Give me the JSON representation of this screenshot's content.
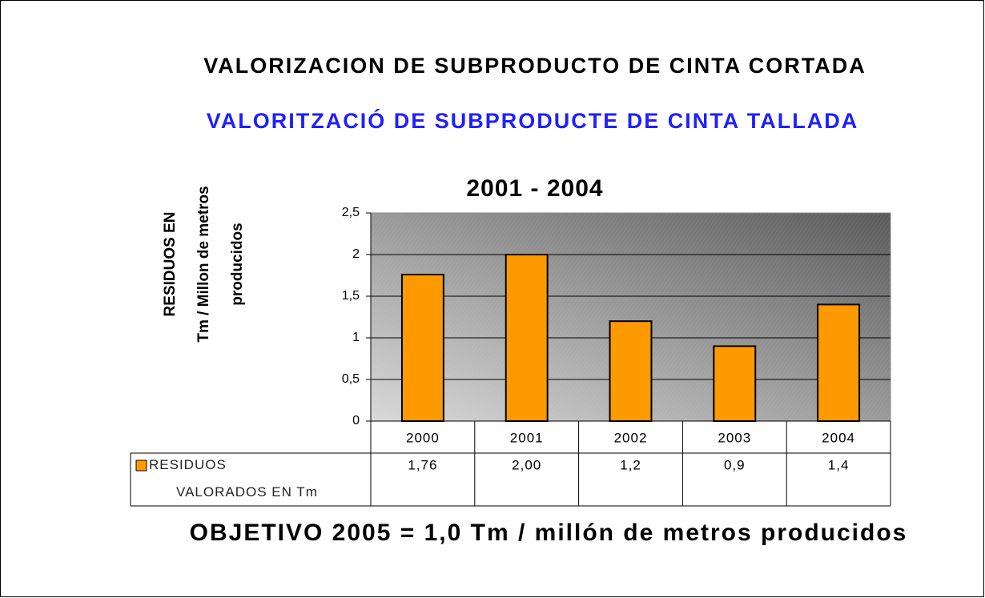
{
  "chart_data": {
    "type": "bar",
    "title": "VALORIZACION DE SUBPRODUCTO DE CINTA CORTADA",
    "subtitle": "VALORITZACIÓ DE SUBPRODUCTE DE CINTA TALLADA",
    "period": "2001 - 2004",
    "ylabel": [
      "RESIDUOS EN",
      "Tm / Millon de metros",
      "producidos"
    ],
    "categories": [
      "2000",
      "2001",
      "2002",
      "2003",
      "2004"
    ],
    "series": [
      {
        "name": "RESIDUOS VALORADOS EN Tm",
        "color": "#ff9900",
        "values": [
          1.76,
          2.0,
          1.2,
          0.9,
          1.4
        ],
        "value_labels": [
          "1,76",
          "2,00",
          "1,2",
          "0,9",
          "1,4"
        ]
      }
    ],
    "ylim": [
      0,
      2.5
    ],
    "yticks": [
      0,
      {
        "value": 0.5,
        "label": "0,5"
      },
      1,
      {
        "value": 1.5,
        "label": "1,5"
      },
      2,
      {
        "value": 2.5,
        "label": "2,5"
      }
    ],
    "grid": true,
    "data_table": true,
    "footnote": "OBJETIVO 2005 = 1,0 Tm / millón de metros producidos"
  }
}
